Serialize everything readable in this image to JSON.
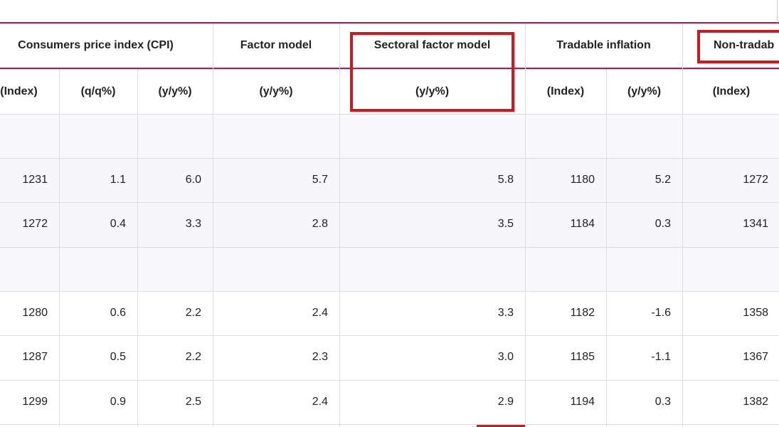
{
  "header": {
    "groups": [
      "Consumers price index (CPI)",
      "Factor model",
      "Sectoral factor model",
      "Tradable inflation",
      "Non-tradab"
    ],
    "subheaders": [
      "(Index)",
      "(q/q%)",
      "(y/y%)",
      "(y/y%)",
      "(y/y%)",
      "(Index)",
      "(y/y%)",
      "(Index)"
    ]
  },
  "table": {
    "rows": [
      [
        "1231",
        "1.1",
        "6.0",
        "5.7",
        "5.8",
        "1180",
        "5.2",
        "1272"
      ],
      [
        "1272",
        "0.4",
        "3.3",
        "2.8",
        "3.5",
        "1184",
        "0.3",
        "1341"
      ],
      [
        "1280",
        "0.6",
        "2.2",
        "2.4",
        "3.3",
        "1182",
        "-1.6",
        "1358"
      ],
      [
        "1287",
        "0.5",
        "2.2",
        "2.3",
        "3.0",
        "1185",
        "-1.1",
        "1367"
      ],
      [
        "1299",
        "0.9",
        "2.5",
        "2.4",
        "2.9",
        "1194",
        "0.3",
        "1382"
      ]
    ]
  }
}
